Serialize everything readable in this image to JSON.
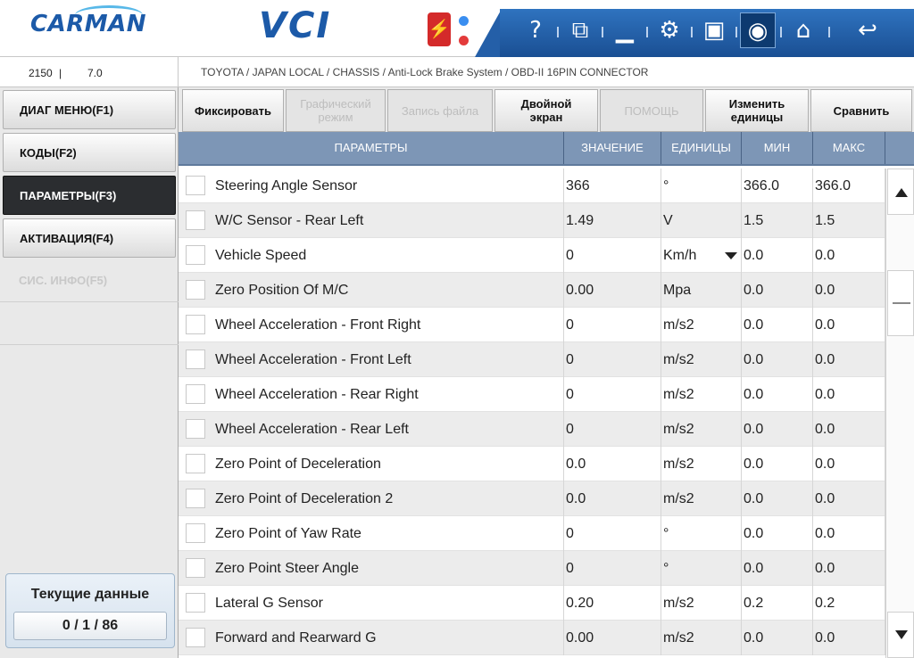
{
  "header": {
    "brand": "CARMAN",
    "product": "VCI",
    "tools": [
      {
        "icon": "help-icon",
        "glyph": "?"
      },
      {
        "icon": "window-switch-icon",
        "glyph": "⧉"
      },
      {
        "icon": "minimize-icon",
        "glyph": "▁"
      },
      {
        "icon": "settings-icon",
        "glyph": "⚙"
      },
      {
        "icon": "save-icon",
        "glyph": "▣"
      },
      {
        "icon": "camera-icon",
        "glyph": "◉"
      },
      {
        "icon": "home-icon",
        "glyph": "⌂"
      },
      {
        "icon": "back-icon",
        "glyph": "↩"
      }
    ],
    "accent": "#1c5aa8"
  },
  "info": {
    "version": "2150",
    "sw": "7.0",
    "breadcrumb": "TOYOTA / JAPAN LOCAL / CHASSIS / Anti-Lock Brake System / OBD-II 16PIN CONNECTOR"
  },
  "sidebar": {
    "items": [
      {
        "label": "ДИАГ МЕНЮ(F1)",
        "state": "normal"
      },
      {
        "label": "КОДЫ(F2)",
        "state": "normal"
      },
      {
        "label": "ПАРАМЕТРЫ(F3)",
        "state": "active"
      },
      {
        "label": "АКТИВАЦИЯ(F4)",
        "state": "normal"
      },
      {
        "label": "СИС. ИНФО(F5)",
        "state": "disabled"
      }
    ],
    "status_title": "Текущие данные",
    "status_count": "0 / 1 / 86"
  },
  "actions": {
    "fix": "Фиксировать",
    "graph_1": "Графический",
    "graph_2": "режим",
    "record": "Запись файла",
    "dual_1": "Двойной",
    "dual_2": "экран",
    "help": "ПОМОЩЬ",
    "units_1": "Изменить",
    "units_2": "единицы",
    "compare": "Сравнить"
  },
  "table": {
    "headers": {
      "param": "ПАРАМЕТРЫ",
      "value": "ЗНАЧЕНИЕ",
      "unit": "ЕДИНИЦЫ",
      "min": "МИН",
      "max": "МАКС"
    },
    "rows": [
      {
        "name": "Steering Angle Sensor",
        "value": "366",
        "unit": "°",
        "min": "366.0",
        "max": "366.0"
      },
      {
        "name": "W/C Sensor - Rear Left",
        "value": "1.49",
        "unit": "V",
        "min": "1.5",
        "max": "1.5"
      },
      {
        "name": "Vehicle Speed",
        "value": "0",
        "unit": "Km/h",
        "min": "0.0",
        "max": "0.0"
      },
      {
        "name": "Zero Position Of M/C",
        "value": "0.00",
        "unit": "Mpa",
        "min": "0.0",
        "max": "0.0"
      },
      {
        "name": "Wheel Acceleration - Front Right",
        "value": "0",
        "unit": "m/s2",
        "min": "0.0",
        "max": "0.0"
      },
      {
        "name": "Wheel Acceleration - Front Left",
        "value": "0",
        "unit": "m/s2",
        "min": "0.0",
        "max": "0.0"
      },
      {
        "name": "Wheel Acceleration - Rear Right",
        "value": "0",
        "unit": "m/s2",
        "min": "0.0",
        "max": "0.0"
      },
      {
        "name": "Wheel Acceleration - Rear Left",
        "value": "0",
        "unit": "m/s2",
        "min": "0.0",
        "max": "0.0"
      },
      {
        "name": "Zero Point of Deceleration",
        "value": "0.0",
        "unit": "m/s2",
        "min": "0.0",
        "max": "0.0"
      },
      {
        "name": "Zero Point of Deceleration 2",
        "value": "0.0",
        "unit": "m/s2",
        "min": "0.0",
        "max": "0.0"
      },
      {
        "name": "Zero Point of Yaw Rate",
        "value": "0",
        "unit": "°",
        "min": "0.0",
        "max": "0.0"
      },
      {
        "name": "Zero Point Steer Angle",
        "value": "0",
        "unit": "°",
        "min": "0.0",
        "max": "0.0"
      },
      {
        "name": "Lateral G Sensor",
        "value": "0.20",
        "unit": "m/s2",
        "min": "0.2",
        "max": "0.2"
      },
      {
        "name": "Forward and Rearward G",
        "value": "0.00",
        "unit": "m/s2",
        "min": "0.0",
        "max": "0.0"
      }
    ]
  }
}
